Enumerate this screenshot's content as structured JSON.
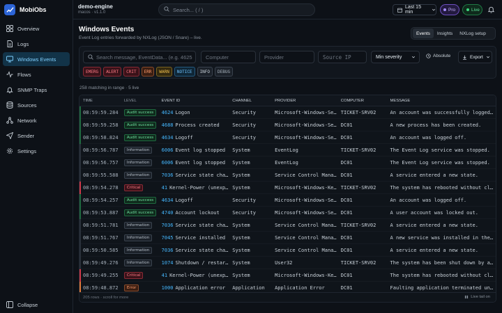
{
  "app": {
    "name": "MobiObs"
  },
  "sidebar": {
    "items": [
      {
        "label": "Overview",
        "icon": "grid-icon"
      },
      {
        "label": "Logs",
        "icon": "document-icon"
      },
      {
        "label": "Windows Events",
        "icon": "monitor-icon",
        "active": true
      },
      {
        "label": "Flows",
        "icon": "activity-icon"
      },
      {
        "label": "SNMP Traps",
        "icon": "bell-icon"
      },
      {
        "label": "Sources",
        "icon": "database-icon"
      },
      {
        "label": "Network",
        "icon": "network-icon"
      },
      {
        "label": "Sender",
        "icon": "send-icon"
      },
      {
        "label": "Settings",
        "icon": "gear-icon"
      }
    ],
    "collapse_label": "Collapse"
  },
  "header": {
    "host": "demo-engine",
    "host_sub": "macos · v1.1.0",
    "search_placeholder": "Search... ( / )",
    "time_range": "Last 15 min",
    "pro_label": "Pro",
    "live_label": "Live"
  },
  "page": {
    "title": "Windows Events",
    "subtitle": "Event Log entries forwarded by NXLog (JSON / Snare) – live.",
    "tabs": [
      "Events",
      "Insights",
      "NXLog setup"
    ]
  },
  "filters": {
    "search_placeholder": "Search message, EventData... (e.g. 4625",
    "computer_placeholder": "Computer",
    "provider_placeholder": "Provider",
    "source_ip_placeholder": "Source IP",
    "severity_label": "Min severity",
    "absolute_label": "Absolute",
    "export_label": "Export",
    "levels": [
      {
        "label": "EMERG",
        "fg": "#ff7b86",
        "bg": "#3a1219",
        "border": "#8a2b36"
      },
      {
        "label": "ALERT",
        "fg": "#ff7b86",
        "bg": "#3a1219",
        "border": "#8a2b36"
      },
      {
        "label": "CRIT",
        "fg": "#ff7b86",
        "bg": "#3a1219",
        "border": "#8a2b36"
      },
      {
        "label": "ERR",
        "fg": "#ff9b6b",
        "bg": "#3a1e12",
        "border": "#8a4b2b"
      },
      {
        "label": "WARN",
        "fg": "#f2c14e",
        "bg": "#33290f",
        "border": "#7a6422"
      },
      {
        "label": "NOTICE",
        "fg": "#6fc3ff",
        "bg": "#0f2636",
        "border": "#245a80"
      },
      {
        "label": "INFO",
        "fg": "#c9d1d9",
        "bg": "#1b2129",
        "border": "#39424d"
      },
      {
        "label": "DEBUG",
        "fg": "#a7b1bc",
        "bg": "#1b2129",
        "border": "#39424d"
      }
    ]
  },
  "summary": "258 matching in range · 5 live",
  "table": {
    "columns": [
      "TIME",
      "LEVEL",
      "EVENT ID",
      "CHANNEL",
      "PROVIDER",
      "COMPUTER",
      "MESSAGE"
    ],
    "rows": [
      {
        "time": "08:59:59.284",
        "level": "Audit success",
        "type": "audit",
        "event_id": "4624",
        "event_name": "Logon",
        "channel": "Security",
        "provider": "Microsoft-Windows-Secu…",
        "computer": "TICKET-SRV02",
        "message": "An account was successfully logged o…",
        "bar": "#1f6a40"
      },
      {
        "time": "08:59:59.258",
        "level": "Audit success",
        "type": "audit",
        "event_id": "4688",
        "event_name": "Process created",
        "channel": "Security",
        "provider": "Microsoft-Windows-Secu…",
        "computer": "DC01",
        "message": "A new process has been created.",
        "bar": "#1f6a40"
      },
      {
        "time": "08:59:58.824",
        "level": "Audit success",
        "type": "audit",
        "event_id": "4634",
        "event_name": "Logoff",
        "channel": "Security",
        "provider": "Microsoft-Windows-Secu…",
        "computer": "DC01",
        "message": "An account was logged off.",
        "bar": "#1f6a40"
      },
      {
        "time": "08:59:56.787",
        "level": "Information",
        "type": "info",
        "event_id": "6006",
        "event_name": "Event log stopped",
        "channel": "System",
        "provider": "EventLog",
        "computer": "TICKET-SRV02",
        "message": "The Event Log service was stopped.",
        "bar": "#2a313b"
      },
      {
        "time": "08:59:56.757",
        "level": "Information",
        "type": "info",
        "event_id": "6006",
        "event_name": "Event log stopped",
        "channel": "System",
        "provider": "EventLog",
        "computer": "DC01",
        "message": "The Event Log service was stopped.",
        "bar": "#2a313b"
      },
      {
        "time": "08:59:55.588",
        "level": "Information",
        "type": "info",
        "event_id": "7036",
        "event_name": "Service state chan…",
        "channel": "System",
        "provider": "Service Control Manager",
        "computer": "DC01",
        "message": "A service entered a new state.",
        "bar": "#2a313b"
      },
      {
        "time": "08:59:54.278",
        "level": "Critical",
        "type": "crit",
        "event_id": "41",
        "event_name": "Kernel-Power (unexpe…",
        "channel": "System",
        "provider": "Microsoft-Windows-Kern…",
        "computer": "TICKET-SRV02",
        "message": "The system has rebooted without clea…",
        "bar": "#d0394a"
      },
      {
        "time": "08:59:54.257",
        "level": "Audit success",
        "type": "audit",
        "event_id": "4634",
        "event_name": "Logoff",
        "channel": "Security",
        "provider": "Microsoft-Windows-Secu…",
        "computer": "DC01",
        "message": "An account was logged off.",
        "bar": "#1f6a40"
      },
      {
        "time": "08:59:53.887",
        "level": "Audit success",
        "type": "audit",
        "event_id": "4740",
        "event_name": "Account lockout",
        "channel": "Security",
        "provider": "Microsoft-Windows-Secu…",
        "computer": "DC01",
        "message": "A user account was locked out.",
        "bar": "#1f6a40"
      },
      {
        "time": "08:59:51.781",
        "level": "Information",
        "type": "info",
        "event_id": "7036",
        "event_name": "Service state chan…",
        "channel": "System",
        "provider": "Service Control Manager",
        "computer": "TICKET-SRV02",
        "message": "A service entered a new state.",
        "bar": "#2a313b"
      },
      {
        "time": "08:59:51.767",
        "level": "Information",
        "type": "info",
        "event_id": "7045",
        "event_name": "Service installed",
        "channel": "System",
        "provider": "Service Control Manager",
        "computer": "DC01",
        "message": "A new service was installed in the s…",
        "bar": "#2a313b"
      },
      {
        "time": "08:59:50.585",
        "level": "Information",
        "type": "info",
        "event_id": "7036",
        "event_name": "Service state chan…",
        "channel": "System",
        "provider": "Service Control Manager",
        "computer": "DC01",
        "message": "A service entered a new state.",
        "bar": "#2a313b"
      },
      {
        "time": "08:59:49.276",
        "level": "Information",
        "type": "info",
        "event_id": "1074",
        "event_name": "Shutdown / restart…",
        "channel": "System",
        "provider": "User32",
        "computer": "TICKET-SRV02",
        "message": "The system has been shut down by a p…",
        "bar": "#2a313b"
      },
      {
        "time": "08:59:49.255",
        "level": "Critical",
        "type": "crit",
        "event_id": "41",
        "event_name": "Kernel-Power (unexpe…",
        "channel": "System",
        "provider": "Microsoft-Windows-Kern…",
        "computer": "DC01",
        "message": "The system has rebooted without clea…",
        "bar": "#d0394a"
      },
      {
        "time": "08:59:48.872",
        "level": "Error",
        "type": "err",
        "event_id": "1000",
        "event_name": "Application error",
        "channel": "Application",
        "provider": "Application Error",
        "computer": "DC01",
        "message": "Faulting application terminated unex…",
        "bar": "#e07a3a"
      }
    ],
    "footer": "205 rows · scroll for more",
    "live_tail_label": "Live tail on"
  }
}
